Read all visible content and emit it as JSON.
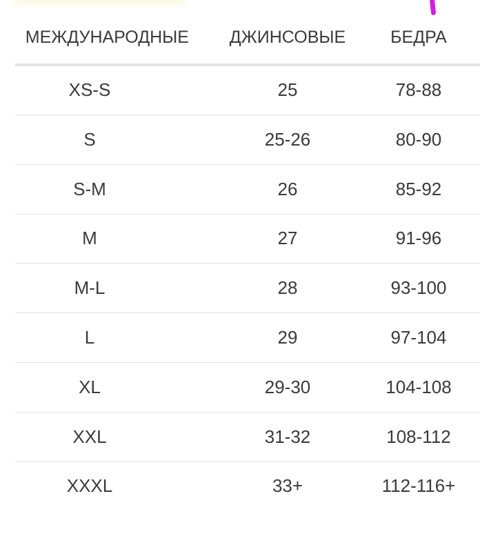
{
  "headers": [
    "МЕЖДУНАРОДНЫЕ",
    "ДЖИНСОВЫЕ",
    "БЕДРА"
  ],
  "rows": [
    [
      "XS-S",
      "25",
      "78-88"
    ],
    [
      "S",
      "25-26",
      "80-90"
    ],
    [
      "S-M",
      "26",
      "85-92"
    ],
    [
      "M",
      "27",
      "91-96"
    ],
    [
      "M-L",
      "28",
      "93-100"
    ],
    [
      "L",
      "29",
      "97-104"
    ],
    [
      "XL",
      "29-30",
      "104-108"
    ],
    [
      "XXL",
      "31-32",
      "108-112"
    ],
    [
      "XXXL",
      "33+",
      "112-116+"
    ]
  ],
  "colors": {
    "text": "#3a3a3a",
    "divider": "#e2e2e2",
    "annotation_mark": "#d21ee0",
    "highlight": "#fbfbe8"
  }
}
